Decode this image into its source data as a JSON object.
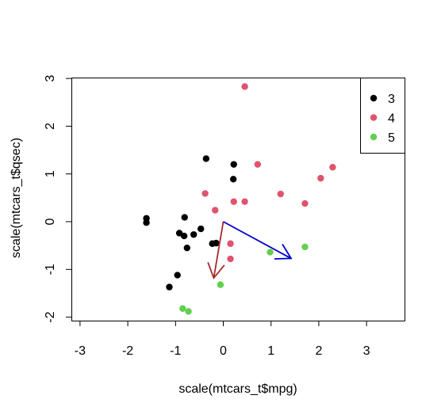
{
  "chart_data": {
    "type": "scatter",
    "title": "",
    "xlabel": "scale(mtcars_t$mpg)",
    "ylabel": "scale(mtcars_t$qsec)",
    "xlim": [
      -3,
      3.75
    ],
    "ylim": [
      -2,
      3
    ],
    "x_ticks": [
      "-3",
      "-2",
      "-1",
      "0",
      "1",
      "2",
      "3"
    ],
    "y_ticks": [
      "-2",
      "-1",
      "0",
      "1",
      "2",
      "3"
    ],
    "legend": {
      "position": "top-right"
    },
    "series": [
      {
        "name": "3",
        "color": "#000000",
        "points": [
          [
            -0.36,
            1.32
          ],
          [
            0.22,
            1.2
          ],
          [
            0.21,
            0.89
          ],
          [
            -1.61,
            0.07
          ],
          [
            -1.61,
            -0.02
          ],
          [
            -0.81,
            0.09
          ],
          [
            -0.47,
            -0.15
          ],
          [
            -0.92,
            -0.24
          ],
          [
            -0.82,
            -0.3
          ],
          [
            -0.62,
            -0.27
          ],
          [
            -0.76,
            -0.55
          ],
          [
            -0.23,
            -0.46
          ],
          [
            -0.15,
            -0.45
          ],
          [
            -0.96,
            -1.12
          ],
          [
            -1.13,
            -1.37
          ]
        ]
      },
      {
        "name": "4",
        "color": "#DF536B",
        "points": [
          [
            0.45,
            2.83
          ],
          [
            0.72,
            1.2
          ],
          [
            2.29,
            1.14
          ],
          [
            2.04,
            0.91
          ],
          [
            1.2,
            0.58
          ],
          [
            -0.38,
            0.59
          ],
          [
            0.22,
            0.42
          ],
          [
            0.45,
            0.42
          ],
          [
            1.71,
            0.38
          ],
          [
            -0.17,
            0.24
          ],
          [
            0.15,
            -0.46
          ],
          [
            0.15,
            -0.78
          ]
        ]
      },
      {
        "name": "5",
        "color": "#61D04F",
        "points": [
          [
            0.98,
            -0.64
          ],
          [
            1.71,
            -0.53
          ],
          [
            -0.06,
            -1.32
          ],
          [
            -0.85,
            -1.82
          ],
          [
            -0.73,
            -1.88
          ]
        ]
      }
    ],
    "arrows": [
      {
        "color": "#A52A2A",
        "from": [
          0,
          0
        ],
        "to": [
          -0.2,
          -1.18
        ]
      },
      {
        "color": "#0000CD",
        "from": [
          0,
          0
        ],
        "to": [
          1.42,
          -0.77
        ]
      }
    ]
  }
}
